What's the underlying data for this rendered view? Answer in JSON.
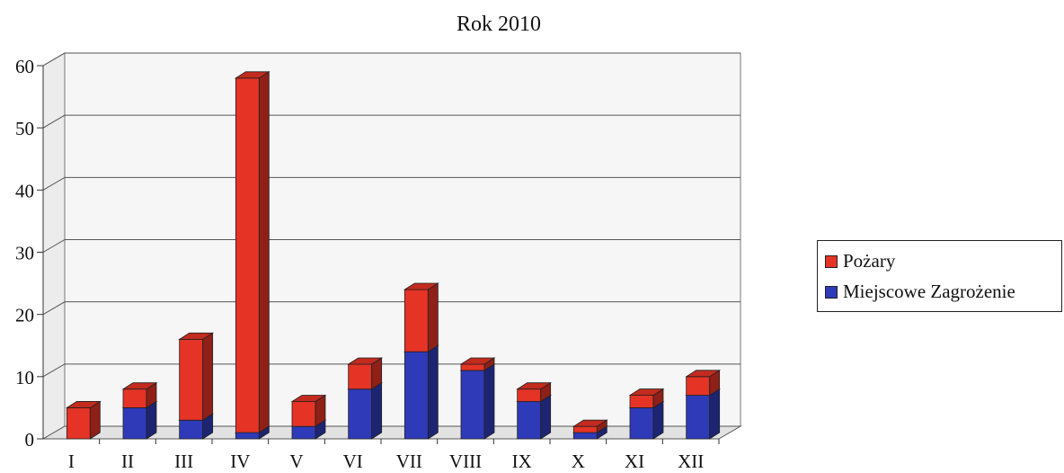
{
  "chart_data": {
    "type": "bar",
    "stacked": true,
    "three_d": true,
    "title": "Rok 2010",
    "xlabel": "",
    "ylabel": "",
    "categories": [
      "I",
      "II",
      "III",
      "IV",
      "V",
      "VI",
      "VII",
      "VIII",
      "IX",
      "X",
      "XI",
      "XII"
    ],
    "series": [
      {
        "name": "Miejscowe Zagrożenie",
        "color": "#2e3ab8",
        "values": [
          0,
          5,
          3,
          1,
          2,
          8,
          14,
          11,
          6,
          1,
          5,
          7
        ]
      },
      {
        "name": "Pożary",
        "color": "#e53325",
        "values": [
          5,
          3,
          13,
          57,
          4,
          4,
          10,
          1,
          2,
          1,
          2,
          3
        ]
      }
    ],
    "ylim": [
      0,
      60
    ],
    "yticks": [
      0,
      10,
      20,
      30,
      40,
      50,
      60
    ],
    "grid": true,
    "legend_position": "right",
    "legend_order": [
      "Pożary",
      "Miejscowe Zagrożenie"
    ]
  }
}
